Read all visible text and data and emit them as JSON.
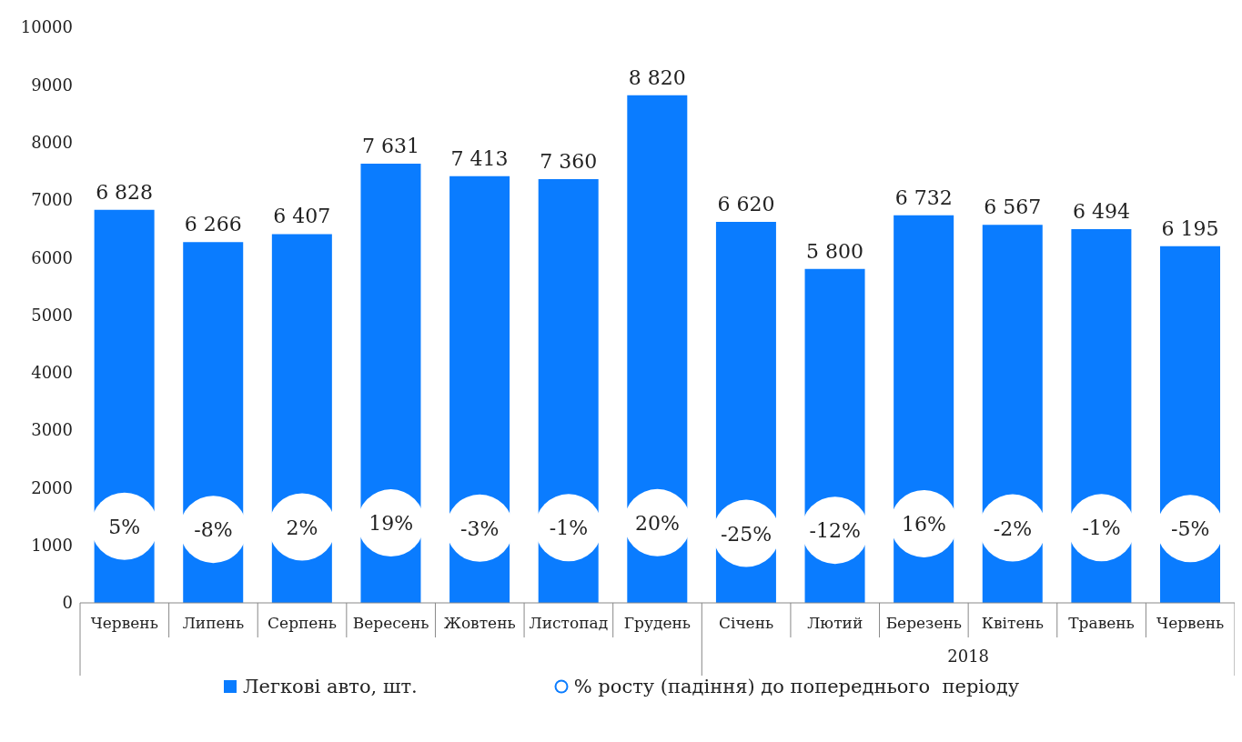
{
  "chart_data": {
    "type": "bar",
    "categories": [
      "Червень",
      "Липень",
      "Серпень",
      "Вересень",
      "Жовтень",
      "Листопад",
      "Грудень",
      "Січень",
      "Лютий",
      "Березень",
      "Квітень",
      "Травень",
      "Червень"
    ],
    "series": [
      {
        "name": "Легкові авто, шт.",
        "color": "#0a7cff",
        "values": [
          6828,
          6266,
          6407,
          7631,
          7413,
          7360,
          8820,
          6620,
          5800,
          6732,
          6567,
          6494,
          6195
        ],
        "value_labels": [
          "6 828",
          "6 266",
          "6 407",
          "7 631",
          "7 413",
          "7 360",
          "8 820",
          "6 620",
          "5 800",
          "6 732",
          "6 567",
          "6 494",
          "6 195"
        ]
      },
      {
        "name": "% росту (падіння) до попереднього  періоду",
        "type": "scatter",
        "axis": "y2",
        "color": "#ffffff",
        "values": [
          5,
          -8,
          2,
          19,
          -3,
          -1,
          20,
          -25,
          -12,
          16,
          -2,
          -1,
          -5
        ],
        "value_labels": [
          "5%",
          "-8%",
          "2%",
          "19%",
          "-3%",
          "-1%",
          "20%",
          "-25%",
          "-12%",
          "16%",
          "-2%",
          "-1%",
          "-5%"
        ]
      }
    ],
    "ylim": [
      0,
      10000
    ],
    "yticks": [
      0,
      1000,
      2000,
      3000,
      4000,
      5000,
      6000,
      7000,
      8000,
      9000,
      10000
    ],
    "annotations": [
      "2018"
    ],
    "grid": false,
    "legend": "bottom"
  }
}
